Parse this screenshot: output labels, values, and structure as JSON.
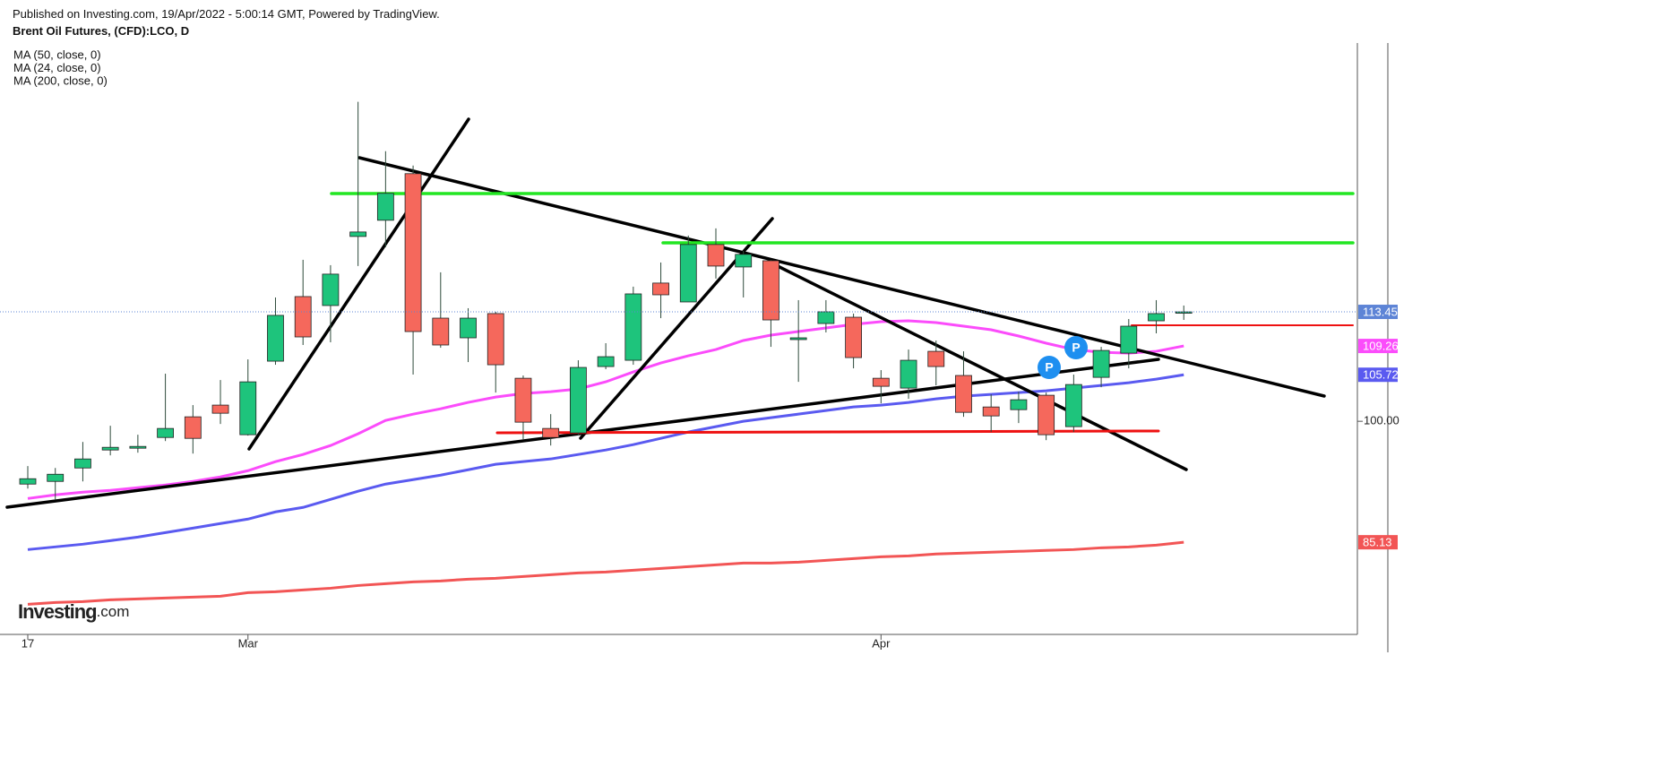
{
  "chart_data": {
    "type": "candlestick",
    "subtitle": "Published on Investing.com, 19/Apr/2022 - 5:00:14 GMT, Powered by TradingView.",
    "title": "Brent Oil Futures, (CFD):LCO, D",
    "logo": "Investing",
    "logo_suffix": ".com",
    "markers": [
      "P",
      "P"
    ],
    "categories": [
      "17",
      null,
      null,
      null,
      null,
      null,
      null,
      null,
      "Mar",
      null,
      null,
      null,
      null,
      null,
      null,
      null,
      null,
      null,
      null,
      null,
      null,
      null,
      null,
      null,
      null,
      null,
      null,
      null,
      null,
      null,
      null,
      "Apr",
      null,
      null,
      null,
      null,
      null,
      null,
      null,
      null,
      null,
      null,
      null
    ],
    "open": [
      92.28,
      92.61,
      94.26,
      96.47,
      96.69,
      98.01,
      100.55,
      101.99,
      98.35,
      107.39,
      115.33,
      114.23,
      122.72,
      124.71,
      130.44,
      112.68,
      110.26,
      113.24,
      105.29,
      99.12,
      98.57,
      106.73,
      107.5,
      116.99,
      114.67,
      121.73,
      118.97,
      119.74,
      110.04,
      112.02,
      112.79,
      105.29,
      104.08,
      108.6,
      105.63,
      101.76,
      101.43,
      103.2,
      99.34,
      105.4,
      108.38,
      112.35,
      113.4
    ],
    "high": [
      94.49,
      94.26,
      97.46,
      99.45,
      98.35,
      105.85,
      101.99,
      105.07,
      107.61,
      115.22,
      119.85,
      119.19,
      139.27,
      133.2,
      131.44,
      118.31,
      113.9,
      113.46,
      105.63,
      100.88,
      107.5,
      109.6,
      116.55,
      119.52,
      122.83,
      123.71,
      120.96,
      119.85,
      114.89,
      114.89,
      113.24,
      106.29,
      108.82,
      109.93,
      108.6,
      103.31,
      103.64,
      103.53,
      105.74,
      109.15,
      112.57,
      114.89,
      114.23
    ],
    "low": [
      91.73,
      90.4,
      92.61,
      95.81,
      96.14,
      97.57,
      96.03,
      99.67,
      98.24,
      106.95,
      109.38,
      109.71,
      119.08,
      121.4,
      105.74,
      109.04,
      107.28,
      103.53,
      97.79,
      97.02,
      98.24,
      106.4,
      106.95,
      112.68,
      114.67,
      117.54,
      115.22,
      109.15,
      104.85,
      110.92,
      106.51,
      102.21,
      102.76,
      104.41,
      100.55,
      98.68,
      99.78,
      97.68,
      98.68,
      104.19,
      106.51,
      110.81,
      112.46
    ],
    "close": [
      92.94,
      93.49,
      95.37,
      96.8,
      96.91,
      99.12,
      97.9,
      100.99,
      104.85,
      113.02,
      110.37,
      118.09,
      123.27,
      128.02,
      111.03,
      109.38,
      112.68,
      106.95,
      99.89,
      98.01,
      106.62,
      107.94,
      115.66,
      115.55,
      121.73,
      119.08,
      120.52,
      112.46,
      110.26,
      113.46,
      107.83,
      104.3,
      107.5,
      106.73,
      101.1,
      100.66,
      102.65,
      98.35,
      104.52,
      108.71,
      111.69,
      113.24,
      113.45
    ],
    "up_color": "#1ec47c",
    "down_color": "#f5685c",
    "last_price_color": "#5d84d6",
    "series": [
      {
        "name": "MA (50, close, 0)",
        "color": "#5a5af0",
        "values": [
          84.23,
          84.56,
          84.89,
          85.33,
          85.77,
          86.32,
          86.87,
          87.43,
          87.98,
          88.86,
          89.41,
          90.4,
          91.4,
          92.28,
          92.83,
          93.38,
          94.04,
          94.71,
          95.04,
          95.37,
          95.92,
          96.47,
          97.13,
          97.9,
          98.68,
          99.34,
          100.0,
          100.44,
          100.88,
          101.32,
          101.76,
          101.99,
          102.32,
          102.76,
          103.09,
          103.31,
          103.53,
          103.75,
          104.08,
          104.41,
          104.74,
          105.18,
          105.72
        ]
      },
      {
        "name": "MA (24, close, 0)",
        "color": "#fb4cfb",
        "values": [
          90.51,
          90.96,
          91.29,
          91.51,
          91.84,
          92.17,
          92.61,
          93.16,
          93.93,
          95.04,
          95.92,
          97.02,
          98.46,
          100.11,
          100.88,
          101.54,
          102.32,
          102.98,
          103.42,
          103.64,
          103.97,
          104.85,
          106.07,
          107.17,
          108.05,
          108.82,
          109.93,
          110.59,
          111.03,
          111.47,
          111.91,
          112.24,
          112.35,
          112.13,
          111.69,
          111.25,
          110.48,
          109.6,
          108.82,
          108.49,
          108.38,
          108.6,
          109.26
        ]
      },
      {
        "name": "MA (200, close, 0)",
        "color": "#f25555",
        "values": [
          77.5,
          77.72,
          77.83,
          78.05,
          78.16,
          78.27,
          78.38,
          78.49,
          78.93,
          79.04,
          79.26,
          79.48,
          79.81,
          80.04,
          80.26,
          80.37,
          80.59,
          80.7,
          80.92,
          81.14,
          81.36,
          81.47,
          81.69,
          81.91,
          82.13,
          82.35,
          82.57,
          82.57,
          82.68,
          82.9,
          83.12,
          83.34,
          83.45,
          83.68,
          83.79,
          83.9,
          84.01,
          84.12,
          84.23,
          84.45,
          84.56,
          84.78,
          85.13
        ]
      }
    ],
    "ylim": [
      73.8,
      146.5
    ],
    "yticks": [
      {
        "value": 100,
        "label": "100.00"
      }
    ]
  }
}
